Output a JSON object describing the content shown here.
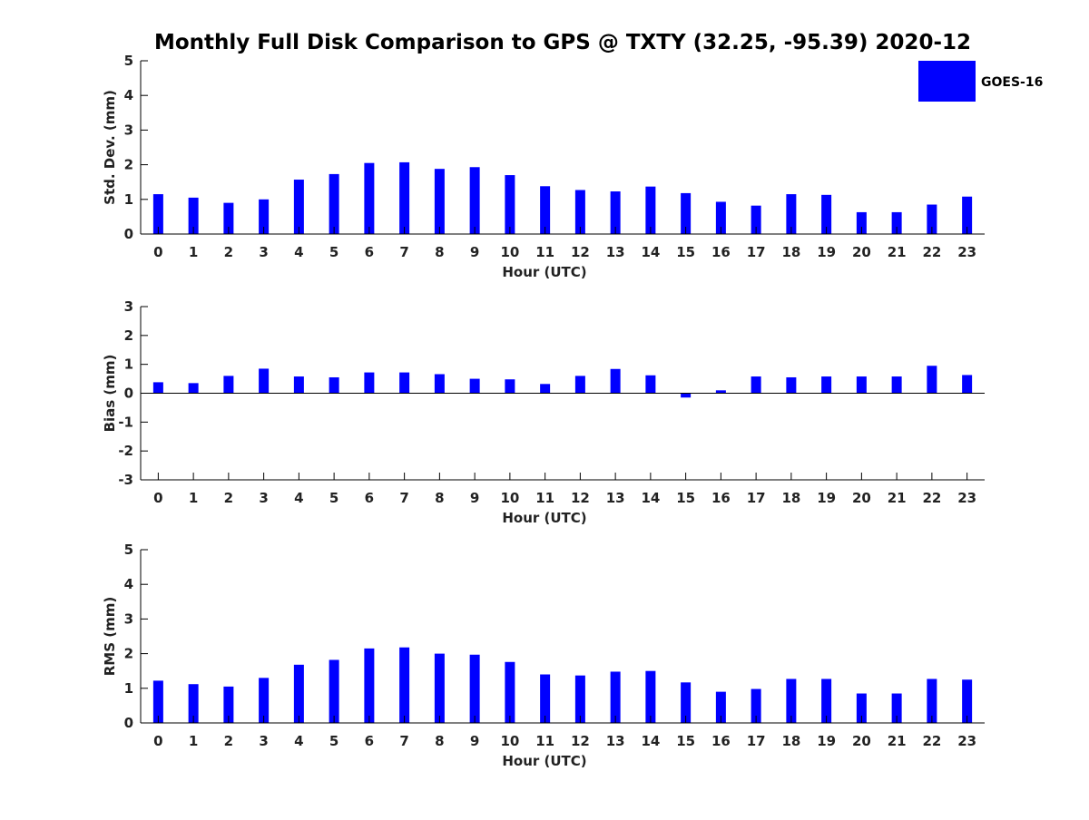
{
  "colors": {
    "bar": "#0000ff",
    "axis": "#000000",
    "text": "#222222"
  },
  "chart_data": {
    "title": "Monthly Full Disk Comparison to GPS @ TXTY (32.25, -95.39) 2020-12",
    "legend": {
      "label": "GOES-16",
      "placement": "top-right"
    },
    "panels": [
      {
        "type": "bar",
        "ylabel": "Std. Dev. (mm)",
        "xlabel": "Hour (UTC)",
        "ylim": [
          0,
          5
        ],
        "yticks": [
          0,
          1,
          2,
          3,
          4,
          5
        ],
        "x": [
          0,
          1,
          2,
          3,
          4,
          5,
          6,
          7,
          8,
          9,
          10,
          11,
          12,
          13,
          14,
          15,
          16,
          17,
          18,
          19,
          20,
          21,
          22,
          23
        ],
        "values": [
          1.15,
          1.05,
          0.9,
          1.0,
          1.57,
          1.73,
          2.05,
          2.07,
          1.88,
          1.93,
          1.7,
          1.38,
          1.27,
          1.23,
          1.37,
          1.18,
          0.93,
          0.82,
          1.15,
          1.13,
          0.63,
          0.63,
          0.85,
          1.08
        ]
      },
      {
        "type": "bar",
        "ylabel": "Bias (mm)",
        "xlabel": "Hour (UTC)",
        "ylim": [
          -3,
          3
        ],
        "yticks": [
          -3,
          -2,
          -1,
          0,
          1,
          2,
          3
        ],
        "x": [
          0,
          1,
          2,
          3,
          4,
          5,
          6,
          7,
          8,
          9,
          10,
          11,
          12,
          13,
          14,
          15,
          16,
          17,
          18,
          19,
          20,
          21,
          22,
          23
        ],
        "values": [
          0.38,
          0.35,
          0.6,
          0.85,
          0.58,
          0.55,
          0.72,
          0.72,
          0.66,
          0.5,
          0.48,
          0.32,
          0.6,
          0.84,
          0.62,
          -0.15,
          0.1,
          0.58,
          0.55,
          0.58,
          0.58,
          0.58,
          0.95,
          0.63
        ]
      },
      {
        "type": "bar",
        "ylabel": "RMS (mm)",
        "xlabel": "Hour (UTC)",
        "ylim": [
          0,
          5
        ],
        "yticks": [
          0,
          1,
          2,
          3,
          4,
          5
        ],
        "x": [
          0,
          1,
          2,
          3,
          4,
          5,
          6,
          7,
          8,
          9,
          10,
          11,
          12,
          13,
          14,
          15,
          16,
          17,
          18,
          19,
          20,
          21,
          22,
          23
        ],
        "values": [
          1.22,
          1.12,
          1.05,
          1.3,
          1.68,
          1.82,
          2.15,
          2.18,
          2.0,
          1.97,
          1.76,
          1.4,
          1.37,
          1.48,
          1.5,
          1.17,
          0.9,
          0.98,
          1.27,
          1.27,
          0.85,
          0.85,
          1.27,
          1.25
        ]
      }
    ]
  }
}
